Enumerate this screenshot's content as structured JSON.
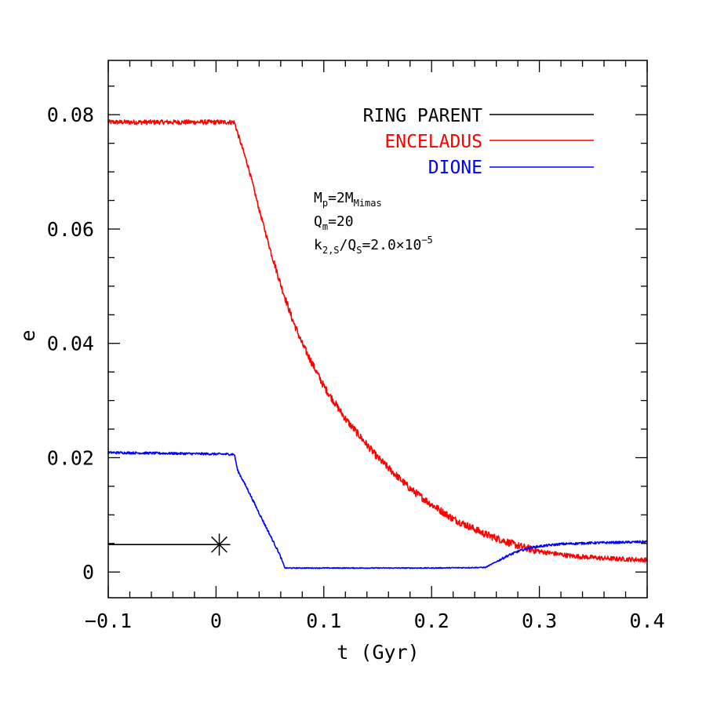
{
  "chart_data": {
    "type": "line",
    "xlabel": "t (Gyr)",
    "ylabel": "e",
    "xlim": [
      -0.1,
      0.4
    ],
    "ylim": [
      -0.0045,
      0.0895
    ],
    "xticks": [
      -0.1,
      0,
      0.1,
      0.2,
      0.3,
      0.4
    ],
    "xtick_labels": [
      "−0.1",
      "0",
      "0.1",
      "0.2",
      "0.3",
      "0.4"
    ],
    "yticks": [
      0,
      0.02,
      0.04,
      0.06,
      0.08
    ],
    "ytick_labels": [
      "0",
      "0.02",
      "0.04",
      "0.06",
      "0.08"
    ],
    "grid": false,
    "legend_position": "top-right",
    "annotations": {
      "mp": {
        "base": "M",
        "sub1": "p",
        "mid": "=2M",
        "sub2": "Mimas"
      },
      "qm": {
        "base": "Q",
        "sub1": "m",
        "mid": "=20"
      },
      "k2": {
        "base": "k",
        "sub1": "2,S",
        "mid": "/Q",
        "sub2": "S",
        "tail": "=2.0×10",
        "sup": "−5"
      }
    },
    "series": [
      {
        "name": "RING PARENT",
        "color": "#000000",
        "x": [
          -0.1,
          0.003
        ],
        "y": [
          0.0048,
          0.0048
        ],
        "end_marker": {
          "x": 0.003,
          "y": 0.0048,
          "shape": "asterisk"
        }
      },
      {
        "name": "ENCELADUS",
        "color": "#ff0000",
        "noise": 0.0004,
        "x": [
          -0.1,
          0.017,
          0.02,
          0.03,
          0.04,
          0.05,
          0.06,
          0.07,
          0.08,
          0.1,
          0.12,
          0.15,
          0.18,
          0.2,
          0.22,
          0.25,
          0.28,
          0.3,
          0.33,
          0.36,
          0.4
        ],
        "y": [
          0.0787,
          0.0787,
          0.0768,
          0.0708,
          0.0634,
          0.0566,
          0.0503,
          0.0446,
          0.0399,
          0.0325,
          0.0268,
          0.02,
          0.0146,
          0.0118,
          0.0093,
          0.0066,
          0.0046,
          0.0036,
          0.0028,
          0.0024,
          0.0021
        ]
      },
      {
        "name": "DIONE",
        "color": "#0000ff",
        "noise": 0.0002,
        "x": [
          -0.1,
          0.017,
          0.02,
          0.03,
          0.04,
          0.05,
          0.058,
          0.064,
          0.1,
          0.2,
          0.25,
          0.26,
          0.27,
          0.28,
          0.29,
          0.3,
          0.32,
          0.35,
          0.38,
          0.4
        ],
        "y": [
          0.0209,
          0.0206,
          0.0178,
          0.0142,
          0.0103,
          0.0065,
          0.0035,
          0.0007,
          0.0007,
          0.0007,
          0.0008,
          0.0018,
          0.0028,
          0.0036,
          0.0042,
          0.0045,
          0.0049,
          0.0051,
          0.0052,
          0.0053
        ]
      }
    ]
  }
}
